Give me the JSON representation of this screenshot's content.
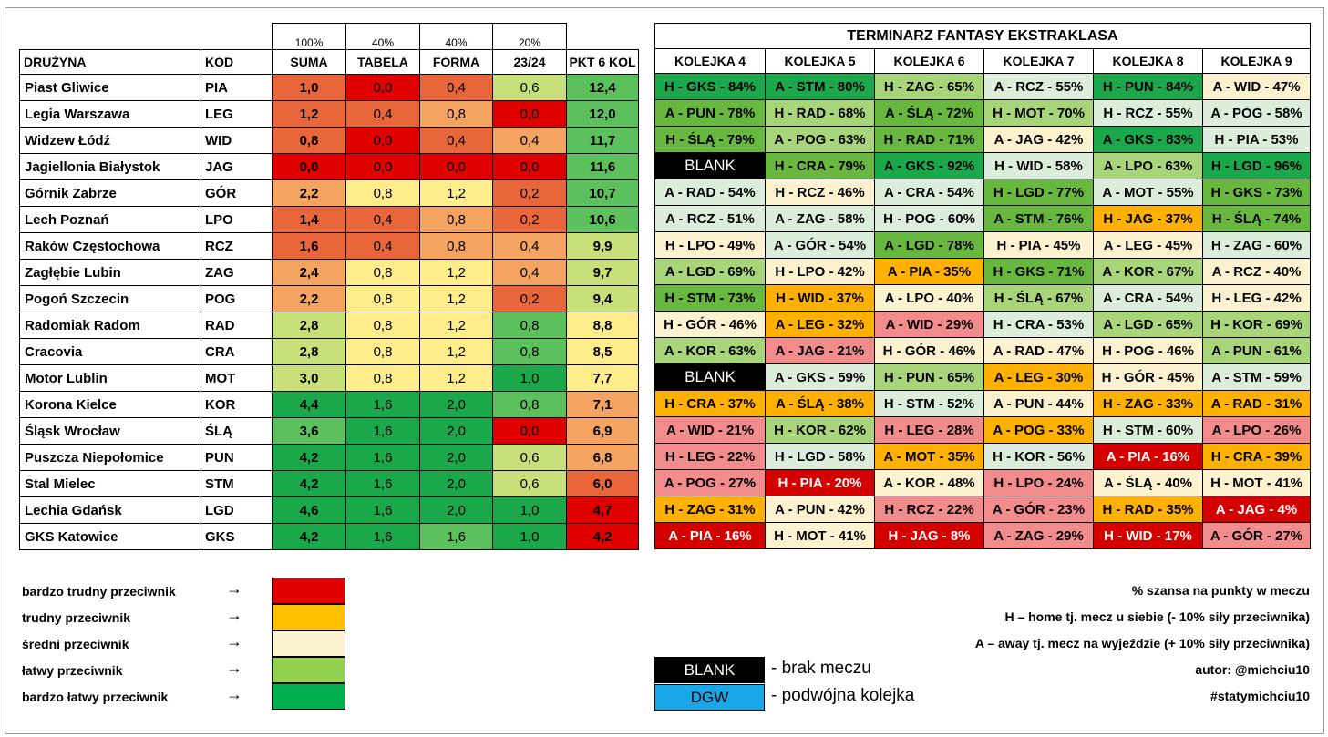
{
  "colors": {
    "red": "#e00000",
    "dark_orange": "#e9663a",
    "orange": "#f4a460",
    "yellow": "#ffec8b",
    "green_light": "#c8e07a",
    "green": "#5cc05c",
    "green_dark": "#1aa84a",
    "fix_red": "#d40000",
    "fix_pink": "#f28b8b",
    "fix_orange": "#ffb000",
    "fix_cream": "#fdf2d0",
    "fix_pale": "#dceedb",
    "fix_lightgreen": "#a8d47a",
    "fix_green": "#68b840",
    "fix_darkgreen": "#1aa84a",
    "blank": "#000000",
    "dgw": "#1aa7e8"
  },
  "weights": [
    "100%",
    "40%",
    "40%",
    "20%"
  ],
  "headers": [
    "DRUŻYNA",
    "KOD",
    "SUMA",
    "TABELA",
    "FORMA",
    "23/24",
    "PKT 6 KOL"
  ],
  "teams": [
    {
      "name": "Piast Gliwice",
      "code": "PIA",
      "suma": "1,0",
      "tabela": "0,0",
      "forma": "0,4",
      "prev": "0,6",
      "pkt": "12,4",
      "cs": "dark_orange",
      "ct": "red",
      "cf": "dark_orange",
      "cp": "green_light",
      "ck": "green"
    },
    {
      "name": "Legia Warszawa",
      "code": "LEG",
      "suma": "1,2",
      "tabela": "0,4",
      "forma": "0,8",
      "prev": "0,0",
      "pkt": "12,0",
      "cs": "dark_orange",
      "ct": "dark_orange",
      "cf": "orange",
      "cp": "red",
      "ck": "green"
    },
    {
      "name": "Widzew Łódź",
      "code": "WID",
      "suma": "0,8",
      "tabela": "0,0",
      "forma": "0,4",
      "prev": "0,4",
      "pkt": "11,7",
      "cs": "dark_orange",
      "ct": "red",
      "cf": "dark_orange",
      "cp": "orange",
      "ck": "green"
    },
    {
      "name": "Jagiellonia Białystok",
      "code": "JAG",
      "suma": "0,0",
      "tabela": "0,0",
      "forma": "0,0",
      "prev": "0,0",
      "pkt": "11,6",
      "cs": "red",
      "ct": "red",
      "cf": "red",
      "cp": "red",
      "ck": "green"
    },
    {
      "name": "Górnik Zabrze",
      "code": "GÓR",
      "suma": "2,2",
      "tabela": "0,8",
      "forma": "1,2",
      "prev": "0,2",
      "pkt": "10,7",
      "cs": "orange",
      "ct": "yellow",
      "cf": "yellow",
      "cp": "dark_orange",
      "ck": "green"
    },
    {
      "name": "Lech Poznań",
      "code": "LPO",
      "suma": "1,4",
      "tabela": "0,4",
      "forma": "0,8",
      "prev": "0,2",
      "pkt": "10,6",
      "cs": "dark_orange",
      "ct": "dark_orange",
      "cf": "orange",
      "cp": "dark_orange",
      "ck": "green"
    },
    {
      "name": "Raków Częstochowa",
      "code": "RCZ",
      "suma": "1,6",
      "tabela": "0,4",
      "forma": "0,8",
      "prev": "0,4",
      "pkt": "9,9",
      "cs": "dark_orange",
      "ct": "dark_orange",
      "cf": "orange",
      "cp": "orange",
      "ck": "green_light"
    },
    {
      "name": "Zagłębie Lubin",
      "code": "ZAG",
      "suma": "2,4",
      "tabela": "0,8",
      "forma": "1,2",
      "prev": "0,4",
      "pkt": "9,7",
      "cs": "orange",
      "ct": "yellow",
      "cf": "yellow",
      "cp": "orange",
      "ck": "green_light"
    },
    {
      "name": "Pogoń Szczecin",
      "code": "POG",
      "suma": "2,2",
      "tabela": "0,8",
      "forma": "1,2",
      "prev": "0,2",
      "pkt": "9,4",
      "cs": "orange",
      "ct": "yellow",
      "cf": "yellow",
      "cp": "dark_orange",
      "ck": "green_light"
    },
    {
      "name": "Radomiak Radom",
      "code": "RAD",
      "suma": "2,8",
      "tabela": "0,8",
      "forma": "1,2",
      "prev": "0,8",
      "pkt": "8,8",
      "cs": "green_light",
      "ct": "yellow",
      "cf": "yellow",
      "cp": "green",
      "ck": "yellow"
    },
    {
      "name": "Cracovia",
      "code": "CRA",
      "suma": "2,8",
      "tabela": "0,8",
      "forma": "1,2",
      "prev": "0,8",
      "pkt": "8,5",
      "cs": "green_light",
      "ct": "yellow",
      "cf": "yellow",
      "cp": "green",
      "ck": "yellow"
    },
    {
      "name": "Motor Lublin",
      "code": "MOT",
      "suma": "3,0",
      "tabela": "0,8",
      "forma": "1,2",
      "prev": "1,0",
      "pkt": "7,7",
      "cs": "green_light",
      "ct": "yellow",
      "cf": "yellow",
      "cp": "green_dark",
      "ck": "yellow"
    },
    {
      "name": "Korona Kielce",
      "code": "KOR",
      "suma": "4,4",
      "tabela": "1,6",
      "forma": "2,0",
      "prev": "0,8",
      "pkt": "7,1",
      "cs": "green_dark",
      "ct": "green_dark",
      "cf": "green_dark",
      "cp": "green",
      "ck": "orange"
    },
    {
      "name": "Śląsk Wrocław",
      "code": "ŚLĄ",
      "suma": "3,6",
      "tabela": "1,6",
      "forma": "2,0",
      "prev": "0,0",
      "pkt": "6,9",
      "cs": "green",
      "ct": "green_dark",
      "cf": "green_dark",
      "cp": "red",
      "ck": "orange"
    },
    {
      "name": "Puszcza Niepołomice",
      "code": "PUN",
      "suma": "4,2",
      "tabela": "1,6",
      "forma": "2,0",
      "prev": "0,6",
      "pkt": "6,8",
      "cs": "green_dark",
      "ct": "green_dark",
      "cf": "green_dark",
      "cp": "green_light",
      "ck": "orange"
    },
    {
      "name": "Stal Mielec",
      "code": "STM",
      "suma": "4,2",
      "tabela": "1,6",
      "forma": "2,0",
      "prev": "0,6",
      "pkt": "6,0",
      "cs": "green_dark",
      "ct": "green_dark",
      "cf": "green_dark",
      "cp": "green_light",
      "ck": "dark_orange"
    },
    {
      "name": "Lechia Gdańsk",
      "code": "LGD",
      "suma": "4,6",
      "tabela": "1,6",
      "forma": "2,0",
      "prev": "1,0",
      "pkt": "4,7",
      "cs": "green_dark",
      "ct": "green_dark",
      "cf": "green_dark",
      "cp": "green_dark",
      "ck": "red"
    },
    {
      "name": "GKS Katowice",
      "code": "GKS",
      "suma": "4,2",
      "tabela": "1,6",
      "forma": "1,6",
      "prev": "1,0",
      "pkt": "4,2",
      "cs": "green_dark",
      "ct": "green_dark",
      "cf": "green",
      "cp": "green_dark",
      "ck": "red"
    }
  ],
  "fixtures": {
    "title": "TERMINARZ FANTASY EKSTRAKLASA",
    "rounds": [
      "KOLEJKA 4",
      "KOLEJKA 5",
      "KOLEJKA 6",
      "KOLEJKA 7",
      "KOLEJKA 8",
      "KOLEJKA 9"
    ],
    "rows": [
      [
        [
          "H - GKS - 84%",
          "fix_darkgreen"
        ],
        [
          "A - STM - 80%",
          "fix_darkgreen"
        ],
        [
          "H - ZAG - 65%",
          "fix_lightgreen"
        ],
        [
          "A - RCZ - 55%",
          "fix_pale"
        ],
        [
          "H - PUN - 84%",
          "fix_darkgreen"
        ],
        [
          "A - WID - 47%",
          "fix_cream"
        ]
      ],
      [
        [
          "A - PUN - 78%",
          "fix_green"
        ],
        [
          "H - RAD - 68%",
          "fix_lightgreen"
        ],
        [
          "A - ŚLĄ - 72%",
          "fix_green"
        ],
        [
          "H - MOT - 70%",
          "fix_lightgreen"
        ],
        [
          "H - RCZ - 55%",
          "fix_pale"
        ],
        [
          "A - POG - 58%",
          "fix_pale"
        ]
      ],
      [
        [
          "H - ŚLĄ - 79%",
          "fix_green"
        ],
        [
          "A - POG - 63%",
          "fix_lightgreen"
        ],
        [
          "H - RAD - 71%",
          "fix_green"
        ],
        [
          "A - JAG - 42%",
          "fix_cream"
        ],
        [
          "A - GKS - 83%",
          "fix_darkgreen"
        ],
        [
          "H - PIA - 53%",
          "fix_pale"
        ]
      ],
      [
        [
          "BLANK",
          "blank"
        ],
        [
          "H - CRA - 79%",
          "fix_green"
        ],
        [
          "A - GKS - 92%",
          "fix_darkgreen"
        ],
        [
          "H - WID - 58%",
          "fix_pale"
        ],
        [
          "A - LPO - 63%",
          "fix_lightgreen"
        ],
        [
          "H - LGD - 96%",
          "fix_darkgreen"
        ]
      ],
      [
        [
          "A - RAD - 54%",
          "fix_pale"
        ],
        [
          "H - RCZ - 46%",
          "fix_cream"
        ],
        [
          "A - CRA - 54%",
          "fix_pale"
        ],
        [
          "H - LGD - 77%",
          "fix_green"
        ],
        [
          "A - MOT - 55%",
          "fix_pale"
        ],
        [
          "H - GKS - 73%",
          "fix_green"
        ]
      ],
      [
        [
          "A - RCZ - 51%",
          "fix_pale"
        ],
        [
          "A - ZAG - 58%",
          "fix_pale"
        ],
        [
          "H - POG - 60%",
          "fix_pale"
        ],
        [
          "A - STM - 76%",
          "fix_green"
        ],
        [
          "H - JAG - 37%",
          "fix_orange"
        ],
        [
          "H - ŚLĄ - 74%",
          "fix_green"
        ]
      ],
      [
        [
          "H - LPO - 49%",
          "fix_cream"
        ],
        [
          "A - GÓR - 54%",
          "fix_pale"
        ],
        [
          "A - LGD - 78%",
          "fix_green"
        ],
        [
          "H - PIA - 45%",
          "fix_cream"
        ],
        [
          "A - LEG - 45%",
          "fix_cream"
        ],
        [
          "H - ZAG - 60%",
          "fix_pale"
        ]
      ],
      [
        [
          "A - LGD - 69%",
          "fix_lightgreen"
        ],
        [
          "H - LPO - 42%",
          "fix_cream"
        ],
        [
          "A - PIA - 35%",
          "fix_orange"
        ],
        [
          "H - GKS - 71%",
          "fix_green"
        ],
        [
          "A - KOR - 67%",
          "fix_lightgreen"
        ],
        [
          "A - RCZ - 40%",
          "fix_cream"
        ]
      ],
      [
        [
          "H - STM - 73%",
          "fix_green"
        ],
        [
          "H - WID - 37%",
          "fix_orange"
        ],
        [
          "A - LPO - 40%",
          "fix_cream"
        ],
        [
          "H - ŚLĄ - 67%",
          "fix_lightgreen"
        ],
        [
          "A - CRA - 54%",
          "fix_pale"
        ],
        [
          "H - LEG - 42%",
          "fix_cream"
        ]
      ],
      [
        [
          "H - GÓR - 46%",
          "fix_cream"
        ],
        [
          "A - LEG - 32%",
          "fix_orange"
        ],
        [
          "A - WID - 29%",
          "fix_pink"
        ],
        [
          "H - CRA - 53%",
          "fix_pale"
        ],
        [
          "A - LGD - 65%",
          "fix_lightgreen"
        ],
        [
          "H - KOR - 69%",
          "fix_lightgreen"
        ]
      ],
      [
        [
          "A - KOR - 63%",
          "fix_lightgreen"
        ],
        [
          "A - JAG - 21%",
          "fix_pink"
        ],
        [
          "H - GÓR - 46%",
          "fix_cream"
        ],
        [
          "A - RAD - 47%",
          "fix_cream"
        ],
        [
          "H - POG - 46%",
          "fix_cream"
        ],
        [
          "A - PUN - 61%",
          "fix_lightgreen"
        ]
      ],
      [
        [
          "BLANK",
          "blank"
        ],
        [
          "A - GKS - 59%",
          "fix_pale"
        ],
        [
          "H - PUN - 65%",
          "fix_lightgreen"
        ],
        [
          "A - LEG - 30%",
          "fix_orange"
        ],
        [
          "H - GÓR - 45%",
          "fix_cream"
        ],
        [
          "A - STM - 59%",
          "fix_pale"
        ]
      ],
      [
        [
          "H - CRA - 37%",
          "fix_orange"
        ],
        [
          "A - ŚLĄ - 38%",
          "fix_orange"
        ],
        [
          "H - STM - 52%",
          "fix_pale"
        ],
        [
          "A - PUN - 44%",
          "fix_cream"
        ],
        [
          "H - ZAG - 33%",
          "fix_orange"
        ],
        [
          "A - RAD - 31%",
          "fix_orange"
        ]
      ],
      [
        [
          "A - WID - 21%",
          "fix_pink"
        ],
        [
          "H - KOR - 62%",
          "fix_lightgreen"
        ],
        [
          "H - LEG - 28%",
          "fix_pink"
        ],
        [
          "A - POG - 33%",
          "fix_orange"
        ],
        [
          "H - STM - 60%",
          "fix_pale"
        ],
        [
          "A - LPO - 26%",
          "fix_pink"
        ]
      ],
      [
        [
          "H - LEG - 22%",
          "fix_pink"
        ],
        [
          "H - LGD - 58%",
          "fix_pale"
        ],
        [
          "A - MOT - 35%",
          "fix_orange"
        ],
        [
          "H - KOR - 56%",
          "fix_pale"
        ],
        [
          "A - PIA - 16%",
          "fix_red"
        ],
        [
          "H - CRA - 39%",
          "fix_orange"
        ]
      ],
      [
        [
          "A - POG - 27%",
          "fix_pink"
        ],
        [
          "H - PIA - 20%",
          "fix_red"
        ],
        [
          "A - KOR - 48%",
          "fix_cream"
        ],
        [
          "H - LPO - 24%",
          "fix_pink"
        ],
        [
          "A - ŚLĄ - 40%",
          "fix_cream"
        ],
        [
          "H - MOT - 41%",
          "fix_cream"
        ]
      ],
      [
        [
          "H - ZAG - 31%",
          "fix_orange"
        ],
        [
          "A - PUN - 42%",
          "fix_cream"
        ],
        [
          "H - RCZ - 22%",
          "fix_pink"
        ],
        [
          "A - GÓR - 23%",
          "fix_pink"
        ],
        [
          "H - RAD - 35%",
          "fix_orange"
        ],
        [
          "A - JAG - 4%",
          "fix_red"
        ]
      ],
      [
        [
          "A - PIA - 16%",
          "fix_red"
        ],
        [
          "H - MOT - 41%",
          "fix_cream"
        ],
        [
          "H - JAG - 8%",
          "fix_red"
        ],
        [
          "A - ZAG - 29%",
          "fix_pink"
        ],
        [
          "H - WID - 17%",
          "fix_red"
        ],
        [
          "A - GÓR - 27%",
          "fix_pink"
        ]
      ]
    ]
  },
  "legend": [
    {
      "label": "bardzo trudny przeciwnik",
      "arrow": "→",
      "color": "#e00000"
    },
    {
      "label": "trudny przeciwnik",
      "arrow": "→",
      "color": "#ffc000"
    },
    {
      "label": "średni przeciwnik",
      "arrow": "→",
      "color": "#fdf2d0"
    },
    {
      "label": "łatwy przeciwnik",
      "arrow": "→",
      "color": "#92d050"
    },
    {
      "label": "bardzo łatwy przeciwnik",
      "arrow": "→",
      "color": "#00b050"
    }
  ],
  "notes": [
    "% szansa na punkty w meczu",
    "H – home tj. mecz u siebie (- 10% siły przeciwnika)",
    "A – away tj. mecz na wyjeździe (+ 10% siły przeciwnika)",
    "autor: @michciu10",
    "#statymichciu10"
  ],
  "keys": [
    {
      "box": "BLANK",
      "label": "- brak meczu",
      "color": "#000000",
      "text_color": "#ffffff"
    },
    {
      "box": "DGW",
      "label": "- podwójna kolejka",
      "color": "#1aa7e8",
      "text_color": "#000000"
    }
  ]
}
